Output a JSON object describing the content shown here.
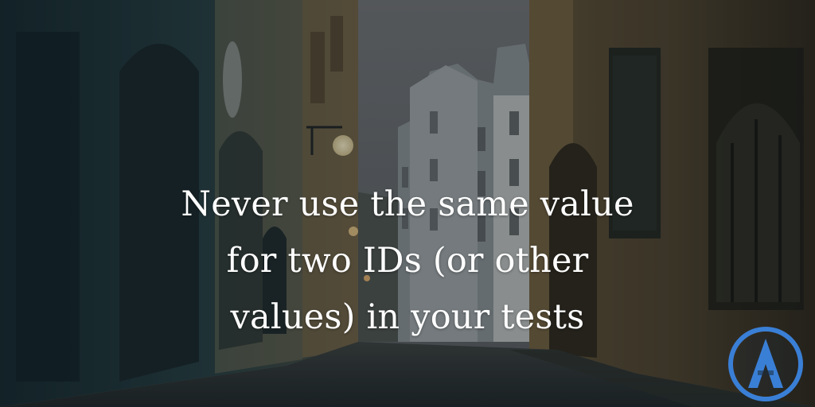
{
  "headline": {
    "text": "Never use the same value for two IDs (or other values) in your tests"
  },
  "logo": {
    "icon": "arcade-a-logo-icon",
    "color": "#3a7fd6"
  },
  "colors": {
    "text": "#ffffff",
    "sky": "#6c6d70",
    "overlay": "#121c22"
  }
}
